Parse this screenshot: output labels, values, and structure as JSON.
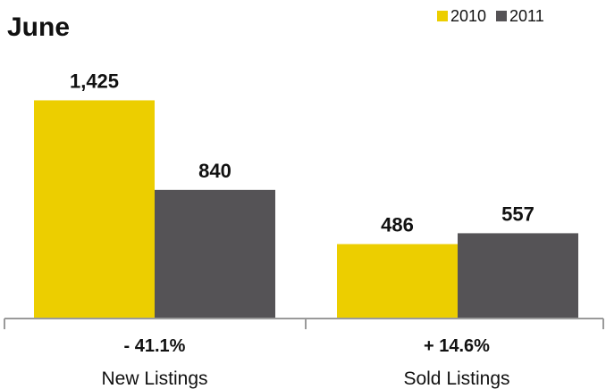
{
  "chart_data": {
    "type": "bar",
    "title": "June",
    "categories": [
      "New Listings",
      "Sold Listings"
    ],
    "category_changes": [
      "- 41.1%",
      "+ 14.6%"
    ],
    "series": [
      {
        "name": "2010",
        "values": [
          1425,
          486
        ],
        "labels": [
          "1,425",
          "486"
        ]
      },
      {
        "name": "2011",
        "values": [
          840,
          557
        ],
        "labels": [
          "840",
          "557"
        ]
      }
    ],
    "xlabel": "",
    "ylabel": "",
    "ylim": [
      0,
      1550
    ],
    "grid": false,
    "legend_position": "top-right"
  },
  "colors": {
    "series_2010": "#ECCE00",
    "series_2011": "#555356",
    "axis": "#9a9a9a",
    "text": "#111111"
  }
}
